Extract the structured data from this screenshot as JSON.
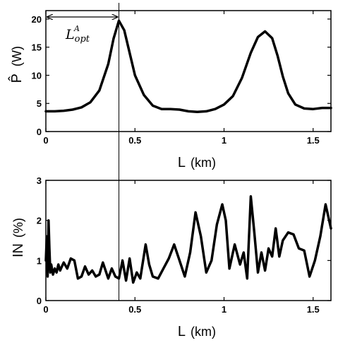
{
  "chart_data": [
    {
      "type": "line",
      "title": "",
      "xlabel": "L",
      "xlabel_unit": "(km)",
      "ylabel": "P̂",
      "ylabel_unit": "(W)",
      "xlim": [
        0,
        1.6
      ],
      "ylim": [
        0,
        21.5
      ],
      "xticks": [
        "0",
        "0.5",
        "1",
        "1.5"
      ],
      "yticks": [
        "0",
        "5",
        "10",
        "15",
        "20"
      ],
      "grid": false,
      "annotation": {
        "main": "L",
        "sub": "opt",
        "sup": "A",
        "from_x": 0,
        "to_x": 0.41
      },
      "series": [
        {
          "x": [
            0,
            0.05,
            0.1,
            0.15,
            0.2,
            0.25,
            0.3,
            0.35,
            0.38,
            0.41,
            0.44,
            0.47,
            0.5,
            0.55,
            0.6,
            0.65,
            0.7,
            0.75,
            0.8,
            0.85,
            0.9,
            0.95,
            1.0,
            1.05,
            1.1,
            1.15,
            1.19,
            1.23,
            1.27,
            1.3,
            1.33,
            1.36,
            1.4,
            1.45,
            1.5,
            1.55,
            1.6
          ],
          "values": [
            3.6,
            3.6,
            3.7,
            3.9,
            4.3,
            5.2,
            7.3,
            12.0,
            16.5,
            19.7,
            18.0,
            14.0,
            10.0,
            6.5,
            4.6,
            4.0,
            4.0,
            3.9,
            3.6,
            3.5,
            3.6,
            4.0,
            4.8,
            6.3,
            9.5,
            14.0,
            16.8,
            17.8,
            16.6,
            13.5,
            9.8,
            6.8,
            4.8,
            4.1,
            4.0,
            4.2,
            4.2
          ]
        }
      ]
    },
    {
      "type": "line",
      "title": "",
      "xlabel": "L",
      "xlabel_unit": "(km)",
      "ylabel": "IN",
      "ylabel_unit": "(%)",
      "xlim": [
        0,
        1.6
      ],
      "ylim": [
        0,
        3
      ],
      "xticks": [
        "0",
        "0.5",
        "1",
        "1.5"
      ],
      "yticks": [
        "0",
        "1",
        "2",
        "3"
      ],
      "grid": false,
      "series": [
        {
          "x": [
            0,
            0.005,
            0.01,
            0.015,
            0.02,
            0.025,
            0.03,
            0.04,
            0.05,
            0.06,
            0.07,
            0.08,
            0.09,
            0.1,
            0.12,
            0.14,
            0.16,
            0.18,
            0.2,
            0.22,
            0.24,
            0.26,
            0.28,
            0.3,
            0.32,
            0.35,
            0.37,
            0.39,
            0.41,
            0.43,
            0.45,
            0.47,
            0.49,
            0.51,
            0.53,
            0.56,
            0.58,
            0.6,
            0.63,
            0.66,
            0.69,
            0.72,
            0.75,
            0.78,
            0.81,
            0.84,
            0.87,
            0.9,
            0.93,
            0.96,
            0.99,
            1.01,
            1.03,
            1.06,
            1.09,
            1.11,
            1.13,
            1.15,
            1.17,
            1.19,
            1.21,
            1.23,
            1.25,
            1.27,
            1.29,
            1.31,
            1.33,
            1.36,
            1.39,
            1.42,
            1.45,
            1.48,
            1.51,
            1.54,
            1.57,
            1.6
          ],
          "values": [
            1.0,
            1.6,
            0.6,
            2.0,
            1.3,
            0.7,
            0.9,
            0.65,
            0.8,
            0.7,
            0.9,
            0.75,
            0.85,
            0.95,
            0.8,
            1.05,
            1.0,
            0.55,
            0.6,
            0.85,
            0.65,
            0.75,
            0.6,
            0.65,
            0.95,
            0.55,
            0.8,
            0.6,
            0.55,
            1.0,
            0.5,
            1.05,
            0.45,
            0.7,
            0.55,
            1.4,
            0.9,
            0.6,
            0.55,
            0.8,
            1.05,
            1.4,
            1.0,
            0.6,
            1.2,
            2.2,
            1.6,
            0.7,
            1.0,
            1.9,
            2.4,
            2.0,
            0.8,
            1.4,
            0.9,
            1.2,
            0.55,
            2.6,
            1.7,
            0.7,
            1.2,
            0.75,
            1.3,
            1.1,
            1.8,
            1.1,
            1.5,
            1.7,
            1.65,
            1.3,
            1.25,
            0.6,
            1.0,
            1.6,
            2.4,
            1.8
          ]
        }
      ]
    }
  ]
}
